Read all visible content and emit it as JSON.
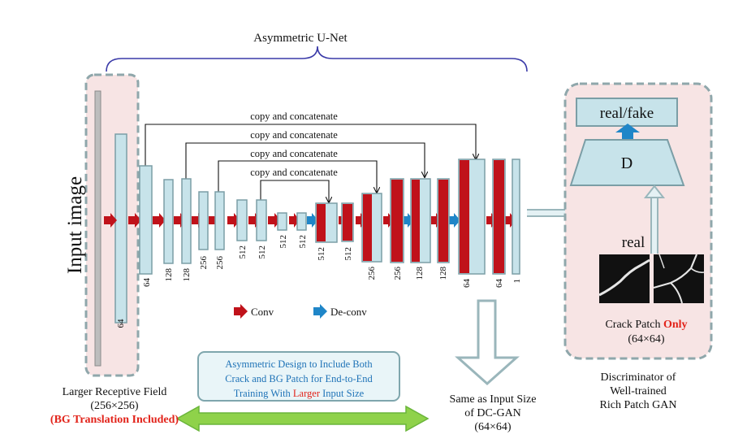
{
  "title": "Asymmetric U-Net",
  "input_label": "Input image",
  "copy_label": "copy and concatenate",
  "legend": {
    "conv": "Conv",
    "deconv": "De-conv"
  },
  "layer_numbers": {
    "input_crop": "64",
    "n1": "64",
    "n2": "128",
    "n3": "128",
    "n4": "256",
    "n5": "256",
    "n6": "512",
    "n7": "512",
    "n8": "512",
    "n9": "512",
    "n10": "512",
    "n11": "512",
    "n12": "256",
    "n13": "256",
    "n14": "128",
    "n15": "128",
    "n16": "64",
    "n17": "64",
    "n18": "1"
  },
  "discriminator": {
    "output": "real/fake",
    "block": "D",
    "real": "real",
    "patch_caption_a": "Crack Patch ",
    "patch_caption_b": "Only",
    "patch_size": "(64×64)"
  },
  "note": {
    "line1": "Asymmetric Design to Include Both",
    "line2": "Crack and BG Patch for End-to-End",
    "line3a": "Training With ",
    "line3b": "Larger",
    "line3c": " Input Size"
  },
  "left_caption": {
    "line1": "Larger Receptive Field",
    "line2": "(256×256)",
    "line3": "(BG Translation Included)"
  },
  "mid_caption": {
    "line1": "Same as Input Size",
    "line2": "of DC-GAN",
    "line3": "(64×64)"
  },
  "right_caption": {
    "line1": "Discriminator of",
    "line2": "Well-trained",
    "line3": "Rich Patch GAN"
  },
  "colors": {
    "feature": "#c7e3ea",
    "feature_border": "#7b9ea6",
    "conv": "#c0121a",
    "deconv": "#1f86c8",
    "panel": "#f7e4e4",
    "panel_border": "#8fa7ab",
    "bracket": "#3a3aa8",
    "green": "#8fd24a"
  }
}
